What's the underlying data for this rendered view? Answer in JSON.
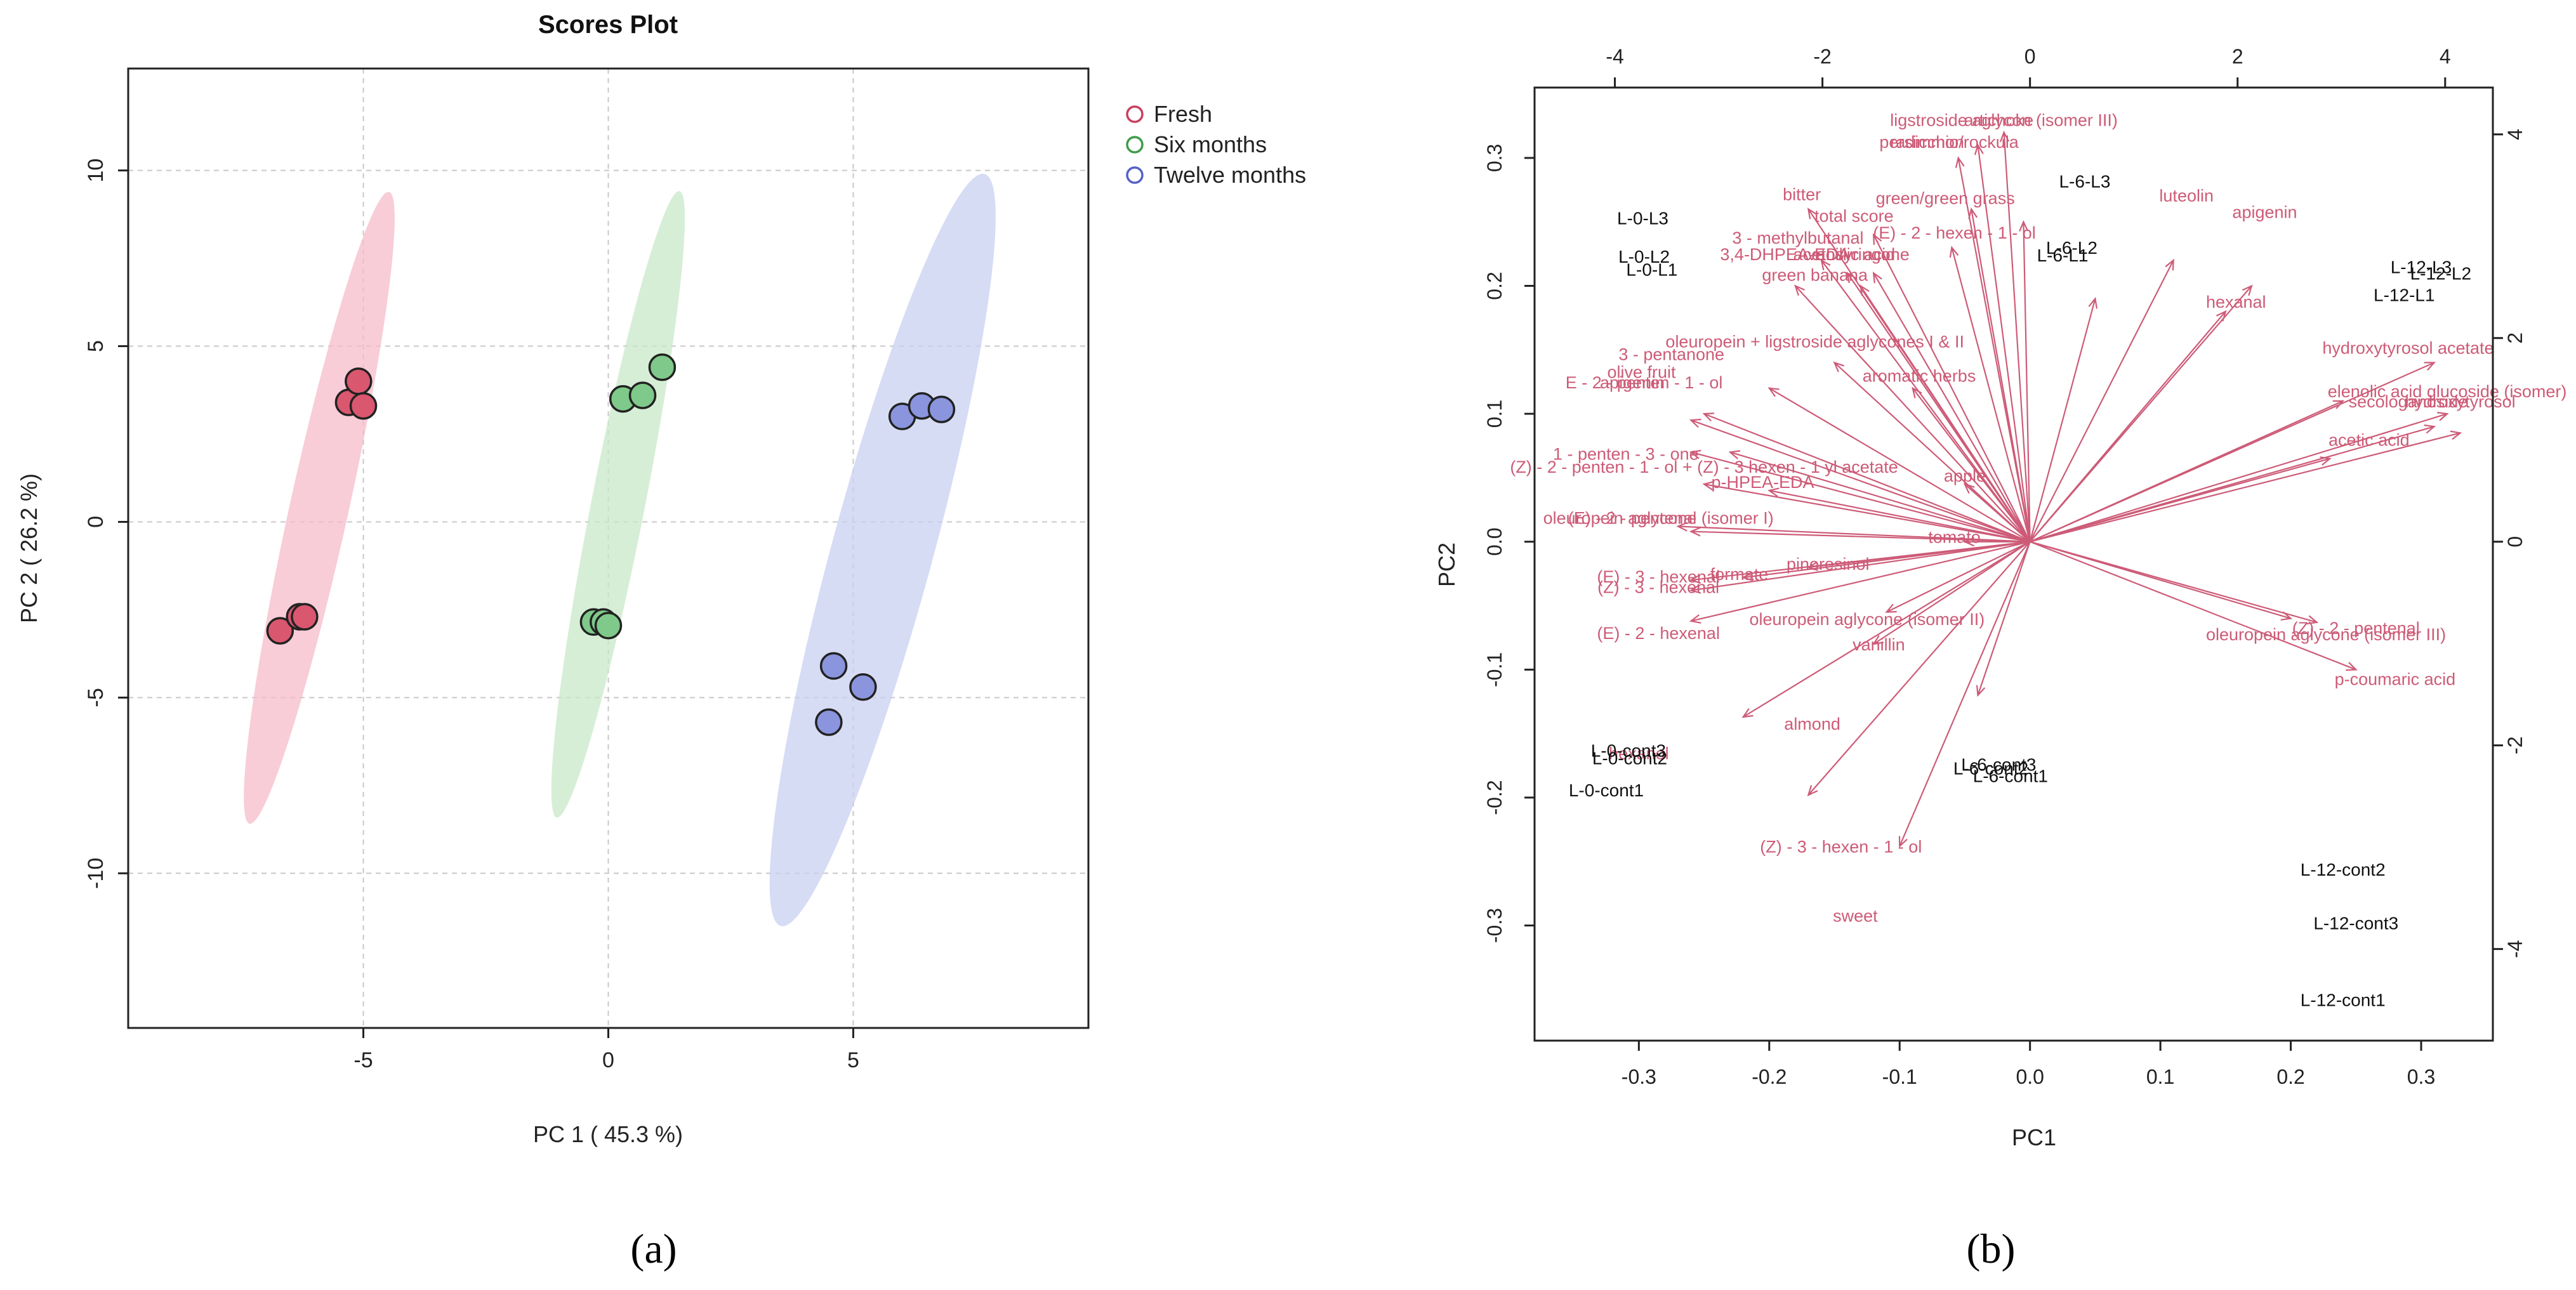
{
  "chart_data": [
    {
      "type": "scatter",
      "panel_label": "(a)",
      "title": "Scores Plot",
      "xlabel": "PC 1 ( 45.3 %)",
      "ylabel": "PC 2 ( 26.2 %)",
      "xlim": [
        -9.8,
        9.8
      ],
      "ylim": [
        -14.4,
        12.9
      ],
      "xticks": [
        -5,
        0,
        5
      ],
      "yticks": [
        -10,
        -5,
        0,
        5,
        10
      ],
      "grid": true,
      "legend_position": "top-right",
      "series": [
        {
          "name": "Fresh",
          "color": "#c8405f",
          "fill": "#d9576f",
          "ellipse_fill": "#f6bcca",
          "points": [
            [
              -5.3,
              3.4
            ],
            [
              -5.1,
              4.0
            ],
            [
              -5.0,
              3.3
            ],
            [
              -6.7,
              -3.1
            ],
            [
              -6.3,
              -2.7
            ],
            [
              -6.2,
              -2.7
            ]
          ],
          "ellipse": {
            "cx": -5.9,
            "cy": 0.4,
            "rx": 9.1,
            "ry": 0.55,
            "angle_deg": 81
          }
        },
        {
          "name": "Six months",
          "color": "#3e9c4a",
          "fill": "#7fc98a",
          "ellipse_fill": "#c8e8c8",
          "points": [
            [
              0.3,
              3.5
            ],
            [
              0.7,
              3.6
            ],
            [
              1.1,
              4.4
            ],
            [
              -0.3,
              -2.85
            ],
            [
              -0.1,
              -2.85
            ],
            [
              0.0,
              -2.95
            ]
          ],
          "ellipse": {
            "cx": 0.2,
            "cy": 0.5,
            "rx": 9.0,
            "ry": 0.5,
            "angle_deg": 82
          }
        },
        {
          "name": "Twelve months",
          "color": "#5560c8",
          "fill": "#8a95dd",
          "ellipse_fill": "#c9d0f2",
          "points": [
            [
              6.0,
              3.0
            ],
            [
              6.4,
              3.3
            ],
            [
              6.8,
              3.2
            ],
            [
              4.6,
              -4.1
            ],
            [
              4.5,
              -5.7
            ],
            [
              5.2,
              -4.7
            ]
          ],
          "ellipse": {
            "cx": 5.6,
            "cy": -0.8,
            "rx": 10.9,
            "ry": 0.95,
            "angle_deg": 79
          }
        }
      ]
    },
    {
      "type": "biplot",
      "panel_label": "(b)",
      "xlabel": "PC1",
      "ylabel": "PC2",
      "xlim": [
        -0.38,
        0.355
      ],
      "ylim": [
        -0.39,
        0.355
      ],
      "xticks": [
        -0.3,
        -0.2,
        -0.1,
        0.0,
        0.1,
        0.2,
        0.3
      ],
      "xtick_labels": [
        "-0.3",
        "-0.2",
        "-0.1",
        "0.0",
        "0.1",
        "0.2",
        "0.3"
      ],
      "yticks": [
        -0.3,
        -0.2,
        -0.1,
        0.0,
        0.1,
        0.2,
        0.3
      ],
      "yticks_labels": [
        "-0.3",
        "-0.2",
        "-0.1",
        "0.0",
        "0.1",
        "0.2",
        "0.3"
      ],
      "top_xticks": [
        -4,
        -2,
        0,
        2,
        4
      ],
      "right_yticks": [
        -4,
        -2,
        0,
        2,
        4
      ],
      "secondary_scale": 0.0796,
      "observation_color": "#111111",
      "variable_color": "#cd5b77",
      "observations": [
        {
          "label": "L-0-L3",
          "x": -0.297,
          "y": 0.248
        },
        {
          "label": "L-0-L2",
          "x": -0.296,
          "y": 0.218
        },
        {
          "label": "L-0-L1",
          "x": -0.29,
          "y": 0.208
        },
        {
          "label": "L-6-L3",
          "x": 0.042,
          "y": 0.277
        },
        {
          "label": "L-6-L2",
          "x": 0.032,
          "y": 0.225
        },
        {
          "label": "L-6-L1",
          "x": 0.025,
          "y": 0.219
        },
        {
          "label": "L-12-L3",
          "x": 0.3,
          "y": 0.21
        },
        {
          "label": "L-12-L2",
          "x": 0.315,
          "y": 0.205
        },
        {
          "label": "L-12-L1",
          "x": 0.287,
          "y": 0.188
        },
        {
          "label": "L-0-cont3",
          "x": -0.308,
          "y": -0.168
        },
        {
          "label": "L-0-cont2",
          "x": -0.307,
          "y": -0.174
        },
        {
          "label": "L-0-cont1",
          "x": -0.325,
          "y": -0.199
        },
        {
          "label": "L-6-cont3",
          "x": -0.024,
          "y": -0.179
        },
        {
          "label": "L-6-cont2",
          "x": -0.03,
          "y": -0.182
        },
        {
          "label": "L-6-cont1",
          "x": -0.015,
          "y": -0.188
        },
        {
          "label": "L-12-cont2",
          "x": 0.24,
          "y": -0.261
        },
        {
          "label": "L-12-cont3",
          "x": 0.25,
          "y": -0.303
        },
        {
          "label": "L-12-cont1",
          "x": 0.24,
          "y": -0.363
        }
      ],
      "variables": [
        {
          "label": "ligstroside aglycon (isomer III)",
          "x": -0.02,
          "y": 0.325
        },
        {
          "label": "artichoke",
          "x": -0.024,
          "y": 0.325
        },
        {
          "label": "persimmon",
          "x": -0.083,
          "y": 0.308
        },
        {
          "label": "radicchio/rockula",
          "x": -0.058,
          "y": 0.308
        },
        {
          "label": "bitter",
          "x": -0.175,
          "y": 0.267
        },
        {
          "label": "green/green grass",
          "x": -0.065,
          "y": 0.264
        },
        {
          "label": "total score",
          "x": -0.135,
          "y": 0.25
        },
        {
          "label": "3 - methylbutanal",
          "x": -0.178,
          "y": 0.233
        },
        {
          "label": "(E) - 2 - hexen - 1 - ol",
          "x": -0.058,
          "y": 0.237
        },
        {
          "label": "3,4-DHPEA-EDA",
          "x": -0.188,
          "y": 0.22
        },
        {
          "label": "acetosyringone",
          "x": -0.137,
          "y": 0.22
        },
        {
          "label": "vanillic acid",
          "x": -0.137,
          "y": 0.22
        },
        {
          "label": "green banana",
          "x": -0.165,
          "y": 0.204
        },
        {
          "label": "luteolin",
          "x": 0.12,
          "y": 0.266
        },
        {
          "label": "apigenin",
          "x": 0.18,
          "y": 0.253
        },
        {
          "label": "hexanal",
          "x": 0.158,
          "y": 0.183
        },
        {
          "label": "hydroxytyrosol acetate",
          "x": 0.29,
          "y": 0.147
        },
        {
          "label": "elenolic acid glucoside (isomer)",
          "x": 0.32,
          "y": 0.113
        },
        {
          "label": "secologanoside",
          "x": 0.29,
          "y": 0.105
        },
        {
          "label": "hydroxytyrosol",
          "x": 0.33,
          "y": 0.105
        },
        {
          "label": "acetic acid",
          "x": 0.26,
          "y": 0.075
        },
        {
          "label": "oleuropein + ligstroside aglycones I & II",
          "x": -0.165,
          "y": 0.152
        },
        {
          "label": "3 - pentanone",
          "x": -0.275,
          "y": 0.142
        },
        {
          "label": "olive fruit",
          "x": -0.298,
          "y": 0.128
        },
        {
          "label": "E - 2 - penten - 1 - ol",
          "x": -0.296,
          "y": 0.12
        },
        {
          "label": "apigenin",
          "x": -0.305,
          "y": 0.12
        },
        {
          "label": "aromatic herbs",
          "x": -0.085,
          "y": 0.125
        },
        {
          "label": "1 - penten - 3 - one",
          "x": -0.31,
          "y": 0.064
        },
        {
          "label": "(Z) - 2 - penten - 1 - ol + (Z) - 3 hexen - 1 yl acetate",
          "x": -0.25,
          "y": 0.054
        },
        {
          "label": "p-HPEA-EDA",
          "x": -0.205,
          "y": 0.042
        },
        {
          "label": "apple",
          "x": -0.05,
          "y": 0.047
        },
        {
          "label": "oleuropein aglycone (isomer I)",
          "x": -0.285,
          "y": 0.014
        },
        {
          "label": "(E) - 2 - pentenal",
          "x": -0.305,
          "y": 0.014
        },
        {
          "label": "tomato",
          "x": -0.058,
          "y": -0.001
        },
        {
          "label": "pinoresinol",
          "x": -0.155,
          "y": -0.022
        },
        {
          "label": "(E) - 3 - hexenal",
          "x": -0.285,
          "y": -0.032
        },
        {
          "label": "(Z) - 3 - hexenal",
          "x": -0.285,
          "y": -0.04
        },
        {
          "label": "formate",
          "x": -0.223,
          "y": -0.03
        },
        {
          "label": "oleuropein aglycone (isomer II)",
          "x": -0.125,
          "y": -0.065
        },
        {
          "label": "(E) - 2 - hexenal",
          "x": -0.285,
          "y": -0.076
        },
        {
          "label": "vanillin",
          "x": -0.116,
          "y": -0.085
        },
        {
          "label": "(Z) - 2 - pentenal",
          "x": 0.25,
          "y": -0.072
        },
        {
          "label": "oleuropein aglycone (isomer III)",
          "x": 0.227,
          "y": -0.077
        },
        {
          "label": "p-coumaric acid",
          "x": 0.28,
          "y": -0.112
        },
        {
          "label": "almond",
          "x": -0.167,
          "y": -0.147
        },
        {
          "label": "hexanol",
          "x": -0.3,
          "y": -0.17
        },
        {
          "label": "(Z) - 3 - hexen - 1 - ol",
          "x": -0.145,
          "y": -0.243
        },
        {
          "label": "sweet",
          "x": -0.134,
          "y": -0.297
        }
      ],
      "arrows": [
        [
          -0.02,
          0.32
        ],
        [
          -0.04,
          0.31
        ],
        [
          -0.055,
          0.3
        ],
        [
          -0.17,
          0.26
        ],
        [
          -0.045,
          0.26
        ],
        [
          -0.12,
          0.24
        ],
        [
          -0.16,
          0.22
        ],
        [
          -0.06,
          0.23
        ],
        [
          -0.18,
          0.2
        ],
        [
          -0.14,
          0.21
        ],
        [
          -0.12,
          0.21
        ],
        [
          -0.13,
          0.2
        ],
        [
          0.11,
          0.22
        ],
        [
          0.17,
          0.2
        ],
        [
          0.15,
          0.18
        ],
        [
          0.31,
          0.14
        ],
        [
          0.32,
          0.1
        ],
        [
          0.31,
          0.09
        ],
        [
          0.33,
          0.085
        ],
        [
          0.23,
          0.065
        ],
        [
          -0.15,
          0.14
        ],
        [
          -0.2,
          0.12
        ],
        [
          -0.25,
          0.1
        ],
        [
          -0.26,
          0.095
        ],
        [
          -0.09,
          0.12
        ],
        [
          -0.26,
          0.07
        ],
        [
          -0.25,
          0.045
        ],
        [
          -0.2,
          0.04
        ],
        [
          -0.05,
          0.045
        ],
        [
          -0.27,
          0.012
        ],
        [
          -0.26,
          0.008
        ],
        [
          -0.05,
          0.0
        ],
        [
          -0.17,
          -0.02
        ],
        [
          -0.26,
          -0.03
        ],
        [
          -0.26,
          -0.038
        ],
        [
          -0.22,
          -0.028
        ],
        [
          -0.11,
          -0.055
        ],
        [
          -0.26,
          -0.062
        ],
        [
          -0.12,
          -0.08
        ],
        [
          0.2,
          -0.06
        ],
        [
          0.22,
          -0.063
        ],
        [
          0.25,
          -0.1
        ],
        [
          -0.22,
          -0.137
        ],
        [
          -0.17,
          -0.198
        ],
        [
          -0.1,
          -0.238
        ],
        [
          -0.04,
          -0.12
        ],
        [
          -0.005,
          0.25
        ],
        [
          0.05,
          0.19
        ],
        [
          0.24,
          0.11
        ],
        [
          -0.23,
          0.07
        ]
      ]
    }
  ]
}
